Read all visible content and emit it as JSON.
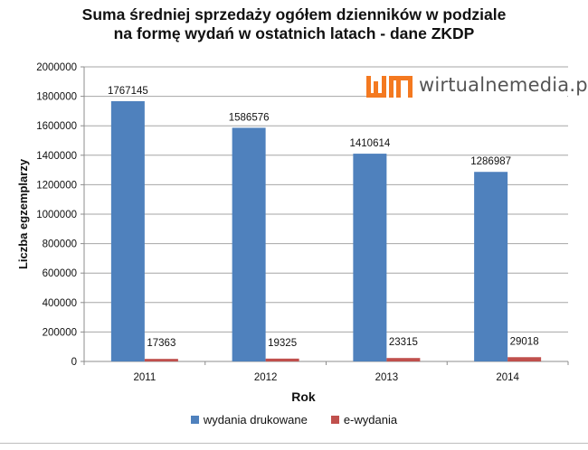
{
  "title": {
    "line1": "Suma średniej sprzedaży ogółem dzienników w podziale",
    "line2": "na formę wydań w ostatnich latach - dane ZKDP"
  },
  "logo": {
    "text": "wirtualnemedia.pl",
    "accent_color": "#f47920"
  },
  "chart_data": {
    "type": "bar",
    "categories": [
      "2011",
      "2012",
      "2013",
      "2014"
    ],
    "series": [
      {
        "name": "wydania drukowane",
        "color": "#4f81bd",
        "values": [
          1767145,
          1586576,
          1410614,
          1286987
        ]
      },
      {
        "name": "e-wydania",
        "color": "#c0504d",
        "values": [
          17363,
          19325,
          23315,
          29018
        ]
      }
    ],
    "xlabel": "Rok",
    "ylabel": "Liczba egzemplarzy",
    "ylim": [
      0,
      2000000
    ],
    "yticks": [
      "0",
      "200000",
      "400000",
      "600000",
      "800000",
      "1000000",
      "1200000",
      "1400000",
      "1600000",
      "1800000",
      "2000000"
    ],
    "grid": true,
    "legend_position": "bottom"
  }
}
